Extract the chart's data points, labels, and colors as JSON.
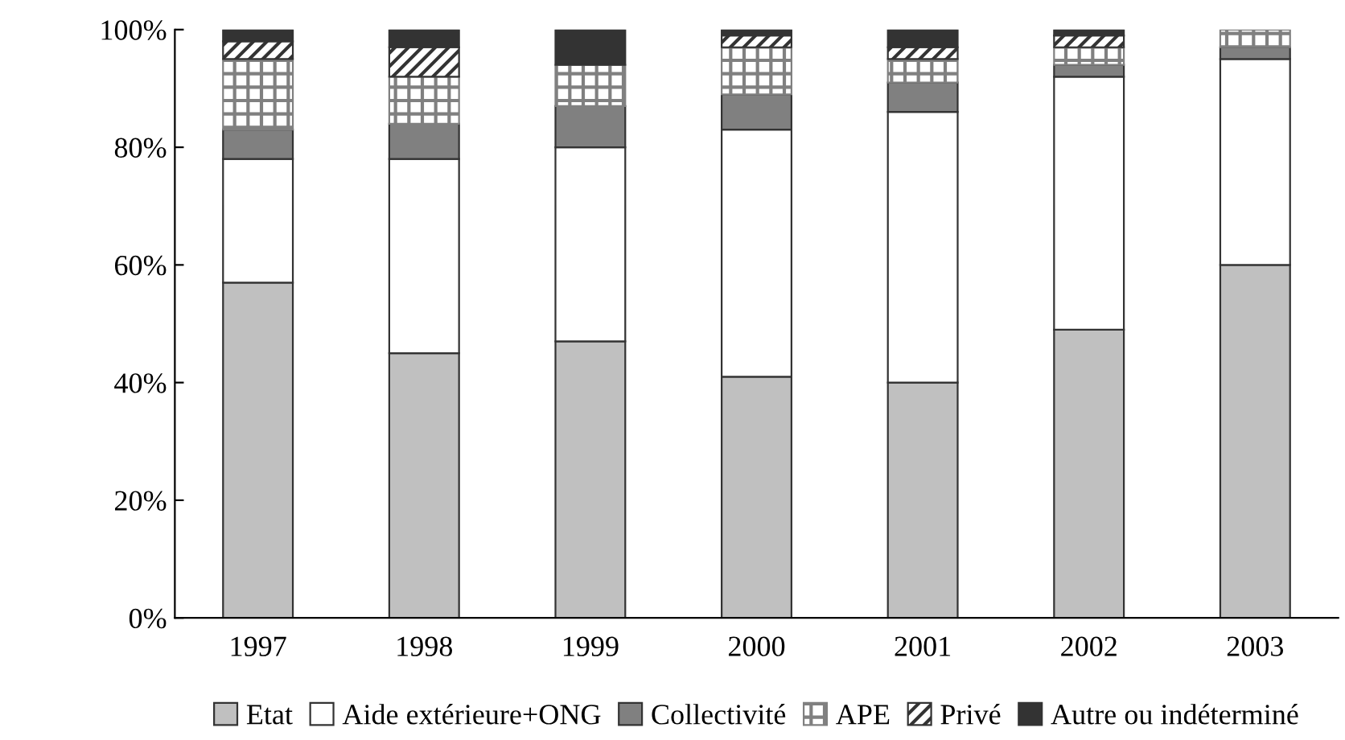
{
  "chart_data": {
    "type": "bar",
    "stacked": true,
    "categories": [
      "1997",
      "1998",
      "1999",
      "2000",
      "2001",
      "2002",
      "2003"
    ],
    "series": [
      {
        "name": "Etat",
        "color": "#c0c0c0",
        "values": [
          57,
          45,
          47,
          41,
          40,
          49,
          60
        ]
      },
      {
        "name": "Aide extérieure+ONG",
        "color": "#ffffff",
        "values": [
          21,
          33,
          33,
          42,
          46,
          43,
          35
        ]
      },
      {
        "name": "Collectivité",
        "color": "#808080",
        "values": [
          5,
          6,
          7,
          6,
          5,
          2,
          2
        ]
      },
      {
        "name": "APE",
        "color": "#808080",
        "values": [
          12,
          8,
          7,
          8,
          4,
          3,
          3
        ]
      },
      {
        "name": "Privé",
        "color": "#333333",
        "values": [
          3,
          5,
          0,
          2,
          2,
          2,
          0
        ]
      },
      {
        "name": "Autre ou indéterminé",
        "color": "#333333",
        "values": [
          2,
          3,
          6,
          1,
          3,
          1,
          0
        ]
      }
    ],
    "ylim": [
      0,
      100
    ],
    "yticks": [
      {
        "value": 0,
        "label": "0%"
      },
      {
        "value": 20,
        "label": "20%"
      },
      {
        "value": 40,
        "label": "40%"
      },
      {
        "value": 60,
        "label": "60%"
      },
      {
        "value": 80,
        "label": "80%"
      },
      {
        "value": 100,
        "label": "100%"
      }
    ],
    "grid": false,
    "legend": "bottom"
  }
}
